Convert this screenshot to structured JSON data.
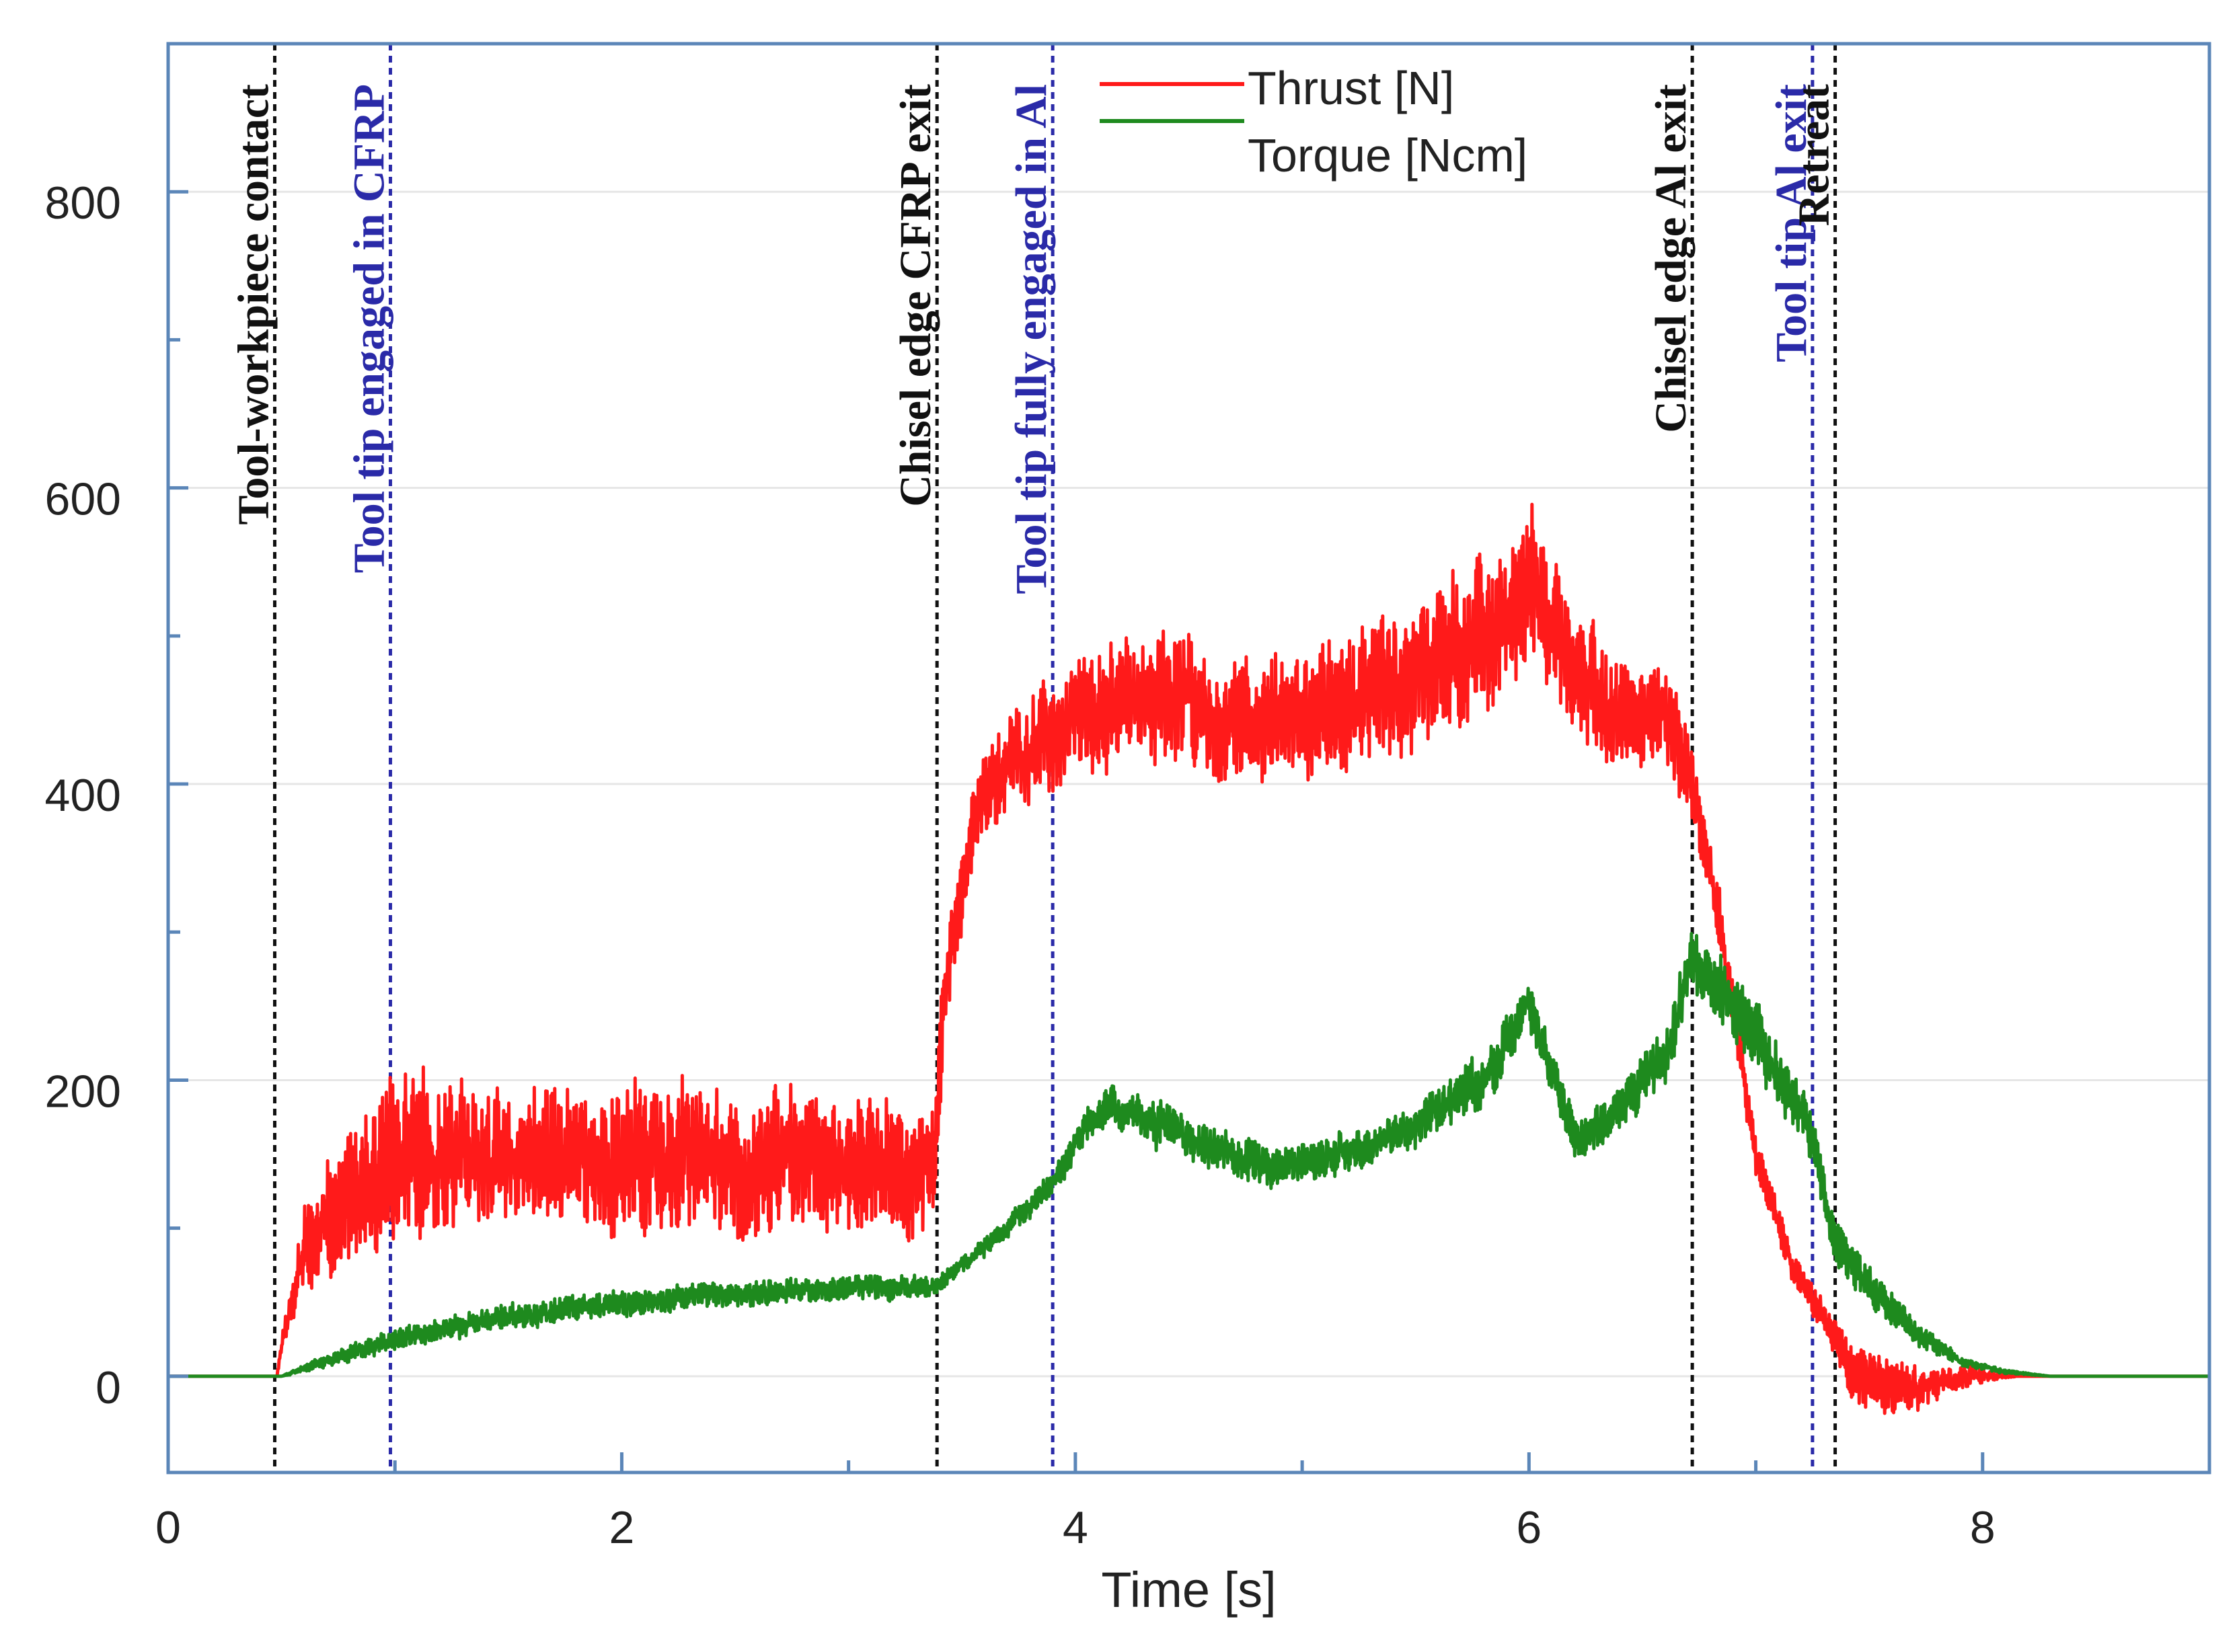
{
  "chart_data": {
    "type": "line",
    "title": "",
    "xlabel": "Time [s]",
    "ylabel": "",
    "xlim": [
      0,
      9
    ],
    "ylim": [
      -65,
      900
    ],
    "xticks": [
      0,
      2,
      4,
      6,
      8
    ],
    "xticklabels": [
      "0",
      "2",
      "4",
      "6",
      "8"
    ],
    "yticks": [
      0,
      200,
      400,
      600,
      800
    ],
    "yticklabels": [
      "0",
      "200",
      "400",
      "600",
      "800"
    ],
    "grid": true,
    "legend_position": "top-center",
    "series": [
      {
        "name": "Thrust [N]",
        "color": "#ff1a1a",
        "x": [
          0,
          0.48,
          0.5,
          0.6,
          0.75,
          1.0,
          1.3,
          1.6,
          2.0,
          2.5,
          3.0,
          3.38,
          3.42,
          3.55,
          3.7,
          3.9,
          4.1,
          4.4,
          4.7,
          5.0,
          5.3,
          5.6,
          5.9,
          6.0,
          6.2,
          6.4,
          6.6,
          6.72,
          6.85,
          7.0,
          7.15,
          7.3,
          7.45,
          7.6,
          7.8,
          8.0,
          8.15,
          8.3,
          9.0
        ],
        "y": [
          0,
          0,
          20,
          80,
          110,
          150,
          150,
          150,
          150,
          145,
          145,
          140,
          260,
          380,
          420,
          430,
          450,
          460,
          440,
          450,
          460,
          480,
          510,
          540,
          480,
          440,
          450,
          400,
          300,
          150,
          80,
          40,
          0,
          -10,
          -5,
          0,
          0,
          0,
          0
        ],
        "noise_amplitude": [
          0,
          0,
          10,
          45,
          60,
          85,
          70,
          70,
          70,
          70,
          65,
          60,
          45,
          45,
          45,
          55,
          60,
          65,
          60,
          60,
          70,
          70,
          75,
          80,
          60,
          55,
          50,
          40,
          30,
          20,
          18,
          15,
          30,
          30,
          15,
          8,
          0,
          0,
          0
        ]
      },
      {
        "name": "Torque [Ncm]",
        "color": "#1e8a1e",
        "x": [
          0,
          0.5,
          0.6,
          0.8,
          1.0,
          1.5,
          2.0,
          2.5,
          3.0,
          3.38,
          3.5,
          3.7,
          3.9,
          4.1,
          4.3,
          4.6,
          4.9,
          5.2,
          5.5,
          5.8,
          6.0,
          6.2,
          6.4,
          6.6,
          6.72,
          6.85,
          7.0,
          7.15,
          7.25,
          7.35,
          7.5,
          7.7,
          7.9,
          8.1,
          8.3,
          9.0
        ],
        "y": [
          0,
          0,
          5,
          15,
          25,
          40,
          50,
          55,
          60,
          60,
          75,
          100,
          130,
          180,
          175,
          155,
          140,
          150,
          170,
          200,
          250,
          160,
          180,
          220,
          280,
          260,
          230,
          190,
          160,
          90,
          60,
          30,
          10,
          3,
          0,
          0
        ],
        "noise_amplitude": [
          0,
          0,
          4,
          8,
          10,
          12,
          12,
          12,
          12,
          10,
          8,
          10,
          12,
          18,
          22,
          22,
          20,
          20,
          20,
          25,
          25,
          22,
          22,
          28,
          30,
          35,
          35,
          28,
          25,
          22,
          20,
          12,
          5,
          2,
          0,
          0
        ]
      }
    ],
    "annotations": [
      {
        "text": "Tool-workpiece contact",
        "x": 0.47,
        "color": "#111111"
      },
      {
        "text": "Tool tip engaged in CFRP",
        "x": 0.98,
        "color": "#2a2aa8"
      },
      {
        "text": "Chisel edge CFRP exit",
        "x": 3.39,
        "color": "#111111"
      },
      {
        "text": "Tool tip fully engaged in Al",
        "x": 3.9,
        "color": "#2a2aa8"
      },
      {
        "text": "Chisel edge Al exit",
        "x": 6.72,
        "color": "#111111"
      },
      {
        "text": "Tool tip Al exit",
        "x": 7.25,
        "color": "#2a2aa8"
      },
      {
        "text": "Retreat",
        "x": 7.35,
        "color": "#111111"
      }
    ]
  }
}
